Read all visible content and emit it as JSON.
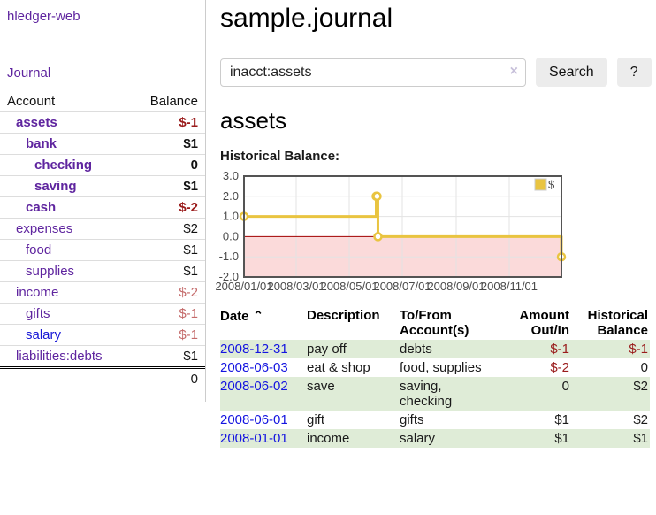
{
  "colors": {
    "link_purple": "#5f259f",
    "link_blue": "#1414e0",
    "negative_strong": "#9a1b1b",
    "negative_muted": "#c46a6a",
    "row_green": "#dfecd7",
    "chart_line": "#e9c440",
    "chart_negative_fill": "#fbdada",
    "chart_zero_line": "#a00000"
  },
  "sidebar": {
    "brand": "hledger-web",
    "journal_label": "Journal",
    "accounts_table": {
      "account_header": "Account",
      "balance_header": "Balance",
      "rows": [
        {
          "name": "assets",
          "balance": "$-1",
          "level": 1,
          "bold": true
        },
        {
          "name": "bank",
          "balance": "$1",
          "level": 2,
          "bold": true
        },
        {
          "name": "checking",
          "balance": "0",
          "level": 3,
          "bold": true
        },
        {
          "name": "saving",
          "balance": "$1",
          "level": 3,
          "bold": true
        },
        {
          "name": "cash",
          "balance": "$-2",
          "level": 2,
          "bold": true
        },
        {
          "name": "expenses",
          "balance": "$2",
          "level": 1,
          "bold": false
        },
        {
          "name": "food",
          "balance": "$1",
          "level": 2,
          "bold": false
        },
        {
          "name": "supplies",
          "balance": "$1",
          "level": 2,
          "bold": false
        },
        {
          "name": "income",
          "balance": "$-2",
          "level": 1,
          "bold": false
        },
        {
          "name": "gifts",
          "balance": "$-1",
          "level": 2,
          "bold": false
        },
        {
          "name": "salary",
          "balance": "$-1",
          "level": 2,
          "bold": false,
          "link_style": "unvisited"
        },
        {
          "name": "liabilities:debts",
          "balance": "$1",
          "level": 1,
          "bold": false
        }
      ],
      "total": "0"
    }
  },
  "header": {
    "title": "sample.journal"
  },
  "search": {
    "value": "inacct:assets",
    "clear_icon": "×",
    "button_label": "Search",
    "help_label": "?"
  },
  "main": {
    "account_heading": "assets",
    "chart_label": "Historical Balance:"
  },
  "chart_data": {
    "type": "line",
    "step": true,
    "title": "Historical Balance",
    "x_start": "2008-01-01",
    "x_end": "2008-12-31",
    "ylim": [
      -2,
      3
    ],
    "y_ticks": [
      "3.0",
      "2.0",
      "1.0",
      "0.0",
      "-1.0",
      "-2.0"
    ],
    "x_ticks": [
      {
        "label": "2008/01/01",
        "date": "2008-01-01"
      },
      {
        "label": "2008/03/01",
        "date": "2008-03-01"
      },
      {
        "label": "2008/05/01",
        "date": "2008-05-01"
      },
      {
        "label": "2008/07/01",
        "date": "2008-07-01"
      },
      {
        "label": "2008/09/01",
        "date": "2008-09-01"
      },
      {
        "label": "2008/11/01",
        "date": "2008-11-01"
      }
    ],
    "grid": true,
    "legend_position": "top-right",
    "series": [
      {
        "name": "$",
        "color": "#e9c440",
        "points": [
          {
            "date": "2008-01-01",
            "value": 1
          },
          {
            "date": "2008-06-01",
            "value": 2
          },
          {
            "date": "2008-06-02",
            "value": 2
          },
          {
            "date": "2008-06-03",
            "value": 0
          },
          {
            "date": "2008-12-31",
            "value": -1
          }
        ]
      }
    ]
  },
  "register_table": {
    "sort_indicator": "⌃",
    "headers": {
      "date": "Date",
      "description": "Description",
      "accounts": "To/From Account(s)",
      "amount": "Amount Out/In",
      "balance": "Historical Balance"
    },
    "rows": [
      {
        "date": "2008-12-31",
        "description": "pay off",
        "accounts": "debts",
        "amount": "$-1",
        "balance": "$-1"
      },
      {
        "date": "2008-06-03",
        "description": "eat & shop",
        "accounts": "food, supplies",
        "amount": "$-2",
        "balance": "0"
      },
      {
        "date": "2008-06-02",
        "description": "save",
        "accounts": "saving, checking",
        "amount": "0",
        "balance": "$2"
      },
      {
        "date": "2008-06-01",
        "description": "gift",
        "accounts": "gifts",
        "amount": "$1",
        "balance": "$2"
      },
      {
        "date": "2008-01-01",
        "description": "income",
        "accounts": "salary",
        "amount": "$1",
        "balance": "$1"
      }
    ]
  }
}
